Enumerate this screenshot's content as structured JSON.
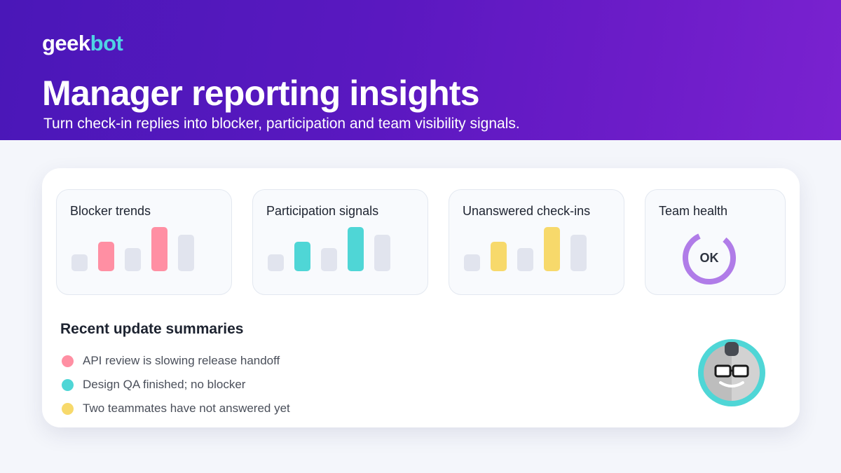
{
  "brand": {
    "logo_part1": "geek",
    "logo_part2": "bot"
  },
  "hero": {
    "title": "Manager reporting insights",
    "subtitle": "Turn check-in replies into blocker, participation and team visibility signals."
  },
  "cards": [
    {
      "title": "Blocker trends",
      "accent": "#ff8fa3",
      "bar_values": [
        0.38,
        0.65,
        0.52,
        0.98,
        0.82
      ],
      "highlighted": [
        1,
        3
      ]
    },
    {
      "title": "Participation signals",
      "accent": "#4fd6d6",
      "bar_values": [
        0.38,
        0.65,
        0.52,
        0.98,
        0.82
      ],
      "highlighted": [
        1,
        3
      ]
    },
    {
      "title": "Unanswered check-ins",
      "accent": "#f7d96b",
      "bar_values": [
        0.38,
        0.65,
        0.52,
        0.98,
        0.82
      ],
      "highlighted": [
        1,
        3
      ]
    }
  ],
  "health": {
    "title": "Team health",
    "status": "OK",
    "ring_color": "#b07ce8",
    "ring_fraction": 0.82
  },
  "summaries": {
    "title": "Recent update summaries",
    "items": [
      {
        "text": "API review is slowing release handoff",
        "color": "#ff8fa3"
      },
      {
        "text": "Design QA finished; no blocker",
        "color": "#4fd6d6"
      },
      {
        "text": "Two teammates have not answered yet",
        "color": "#f7d96b"
      }
    ]
  },
  "colors": {
    "neutral_bar": "#e1e4ee",
    "mascot_ring": "#4fd6d6"
  },
  "mascot": {
    "icon": "robot-mascot-icon"
  }
}
